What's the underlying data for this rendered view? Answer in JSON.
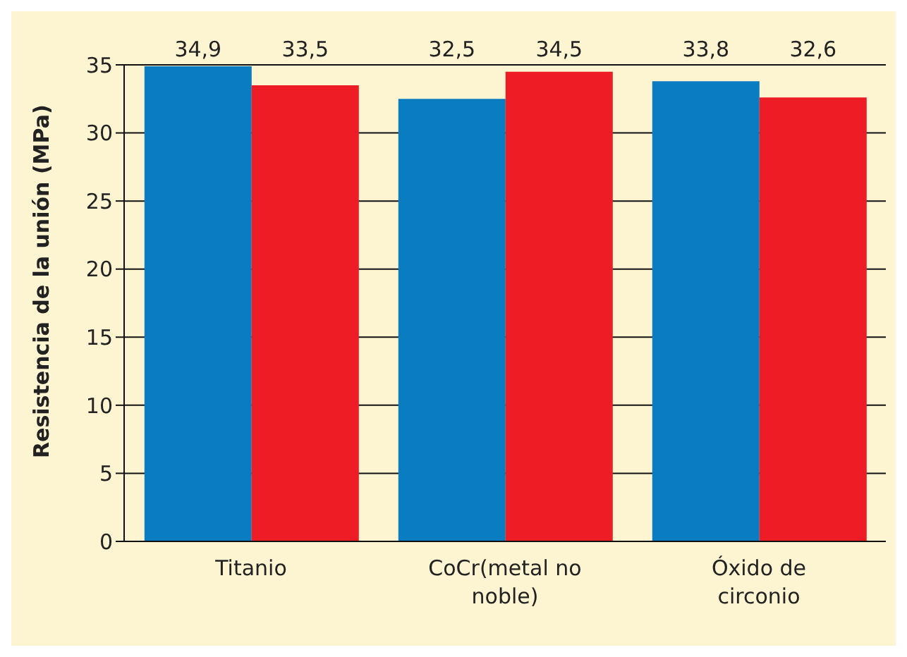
{
  "chart_data": {
    "type": "bar",
    "ylabel": "Resistencia de la unión (MPa)",
    "categories": [
      "Titanio",
      "CoCr(metal no noble)",
      "Óxido de circonio"
    ],
    "series": [
      {
        "color": "#0a7cc2",
        "values": [
          34.9,
          32.5,
          33.8
        ],
        "value_labels": [
          "34,9",
          "32,5",
          "33,8"
        ]
      },
      {
        "color": "#ee1c25",
        "values": [
          33.5,
          34.5,
          32.6
        ],
        "value_labels": [
          "33,5",
          "34,5",
          "32,6"
        ]
      }
    ],
    "ylim": [
      0,
      35
    ],
    "yticks": [
      0,
      5,
      10,
      15,
      20,
      25,
      30,
      35
    ],
    "grid": "y"
  }
}
